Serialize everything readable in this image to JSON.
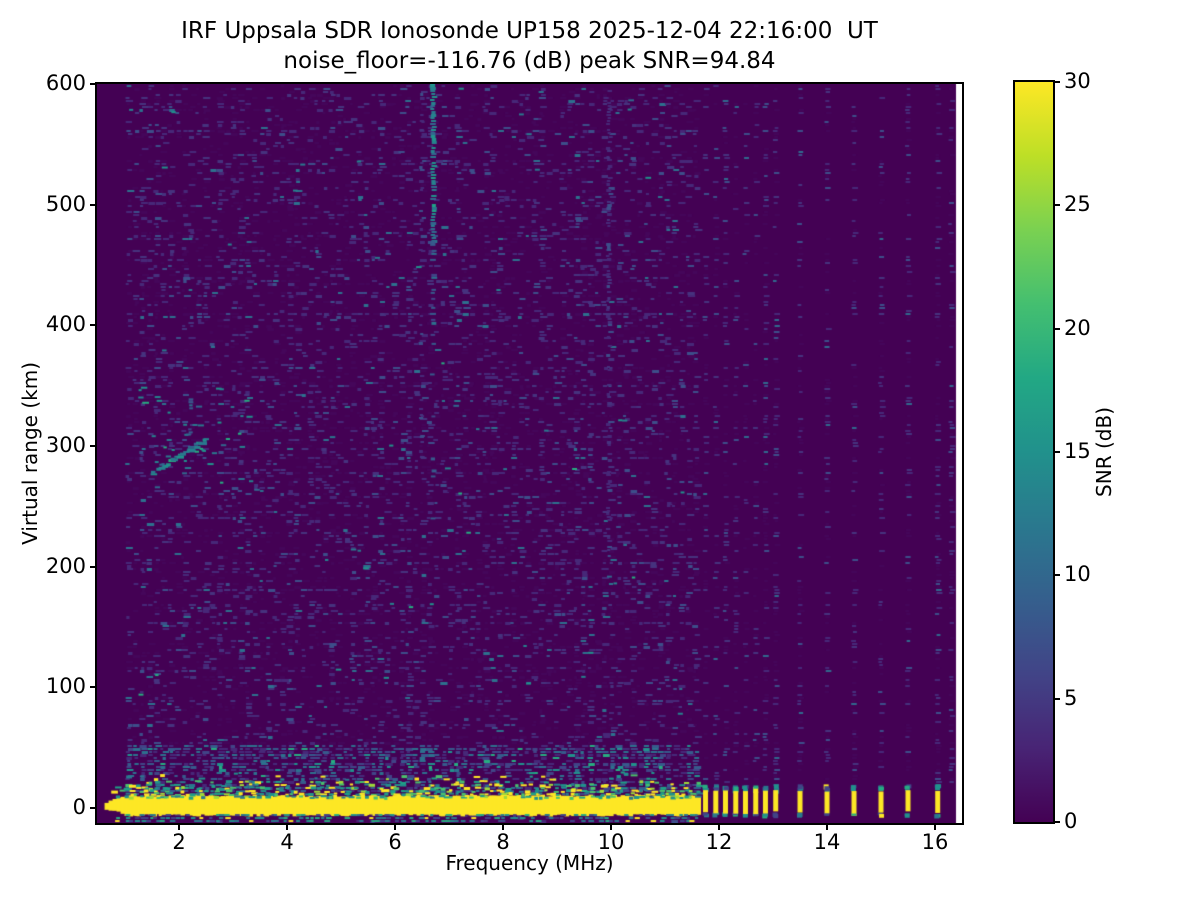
{
  "chart_data": {
    "type": "heatmap",
    "title": "IRF Uppsala SDR Ionosonde UP158 2025-12-04 22:16:00  UT",
    "subtitle": "noise_floor=-116.76 (dB) peak SNR=94.84",
    "xlabel": "Frequency (MHz)",
    "ylabel": "Virtual range (km)",
    "x_ticks": [
      2,
      4,
      6,
      8,
      10,
      12,
      14,
      16
    ],
    "y_ticks": [
      0,
      100,
      200,
      300,
      400,
      500,
      600
    ],
    "x_range_mhz": [
      0.48,
      16.5
    ],
    "y_range_km": [
      -12.4,
      600
    ],
    "data_max_mhz": 16.39,
    "colormap": "viridis",
    "background_color": "#440154",
    "colorbar": {
      "label": "SNR (dB)",
      "ticks": [
        0,
        5,
        10,
        15,
        20,
        25,
        30
      ],
      "range": [
        0,
        30
      ]
    },
    "viridis_stops": [
      "#440154",
      "#482475",
      "#414487",
      "#355f8d",
      "#2a788e",
      "#21918c",
      "#22a884",
      "#44bf70",
      "#7ad151",
      "#bddf26",
      "#fde725"
    ],
    "palettes": {
      "noise": {
        "colors": [
          "#45065a",
          "#472878",
          "#46327e",
          "#3d4e8a",
          "#2d708e"
        ],
        "weights": [
          0.42,
          0.3,
          0.16,
          0.09,
          0.03
        ]
      },
      "noiseHot": {
        "colors": [
          "#472878",
          "#414487",
          "#375a8c",
          "#2d708e",
          "#21918c",
          "#27ad81"
        ],
        "weights": [
          0.3,
          0.27,
          0.2,
          0.13,
          0.07,
          0.03
        ]
      },
      "fringe": {
        "colors": [
          "#fde725",
          "#9fda3a",
          "#4ac16d",
          "#1fa187",
          "#21918c",
          "#2a788e"
        ],
        "weights": [
          0.28,
          0.1,
          0.16,
          0.18,
          0.16,
          0.12
        ]
      },
      "below": {
        "colors": [
          "#21918c",
          "#27ad81",
          "#2a788e",
          "#414487",
          "#fde725"
        ],
        "weights": [
          0.28,
          0.16,
          0.26,
          0.2,
          0.1
        ]
      },
      "colNoise": {
        "colors": [
          "#45065a",
          "#472878",
          "#46327e",
          "#3d4e8a",
          "#31688e"
        ],
        "weights": [
          0.4,
          0.3,
          0.17,
          0.1,
          0.03
        ]
      },
      "stripeStrong": {
        "colors": [
          "#21918c",
          "#26828e",
          "#2a788e",
          "#31688e",
          "#1fa187"
        ],
        "weights": [
          0.3,
          0.25,
          0.2,
          0.15,
          0.1
        ]
      },
      "stripeMid": {
        "colors": [
          "#375a8c",
          "#414487",
          "#2d708e"
        ],
        "weights": [
          0.45,
          0.35,
          0.2
        ]
      },
      "stripeFaint": {
        "colors": [
          "#472878",
          "#46327e",
          "#3d4e8a"
        ],
        "weights": [
          0.5,
          0.3,
          0.2
        ]
      },
      "echo": {
        "colors": [
          "#21918c",
          "#26828e",
          "#2a788e",
          "#27ad81",
          "#31688e"
        ],
        "weights": [
          0.3,
          0.25,
          0.2,
          0.1,
          0.15
        ]
      }
    },
    "noise": {
      "start_mhz": 1.02,
      "end_mhz": 11.65,
      "base_density": 0.33,
      "palette": "noise",
      "elevated_km": [
        10,
        53
      ],
      "elevated_boost": 2.2,
      "elevated_palette": "noiseHot",
      "bright_speckles": 55
    },
    "ground_return_band": {
      "f_start": 0.62,
      "f_end": 11.62,
      "solid_top_km": 9.1,
      "solid_bottom_km": -5.0,
      "color": "#fde725"
    },
    "rf_dash_freqs_mhz": [
      11.75,
      11.94,
      12.12,
      12.31,
      12.49,
      12.68,
      12.86,
      13.05,
      13.5,
      14.0,
      14.5,
      15.0,
      15.5,
      16.05
    ],
    "dash_top_km": 14,
    "dash_bottom_km": -3.5,
    "noise_column_freqs_mhz": [
      11.75,
      11.94,
      12.12,
      12.31,
      12.49,
      12.68,
      12.86,
      13.05,
      13.5,
      14.0,
      14.5,
      15.0,
      15.5,
      16.05,
      16.3
    ],
    "right_noise": {
      "density": 0.3,
      "palette": "colNoise",
      "bottom_km": 16
    },
    "interference_stripes": [
      {
        "f_mhz": 6.7,
        "km_from": 470,
        "km_to": 600,
        "density": 0.95,
        "palette": "stripeStrong",
        "width": 4
      },
      {
        "f_mhz": 6.7,
        "km_from": 385,
        "km_to": 470,
        "density": 0.45,
        "palette": "stripeMid",
        "width": 4
      },
      {
        "f_mhz": 6.7,
        "km_from": 200,
        "km_to": 385,
        "density": 0.15,
        "palette": "stripeMid",
        "width": 4
      },
      {
        "f_mhz": 9.95,
        "km_from": 200,
        "km_to": 600,
        "density": 0.5,
        "palette": "stripeFaint",
        "width": 3
      },
      {
        "f_mhz": 6.48,
        "km_from": 280,
        "km_to": 600,
        "density": 0.25,
        "palette": "stripeFaint",
        "width": 3
      }
    ],
    "echo_trace": {
      "f_from": 1.46,
      "km_from": 279,
      "f_to": 2.48,
      "km_to": 307,
      "density": 0.85,
      "palette": "echo"
    },
    "echo_vertical": {
      "f_mhz": 2.2,
      "km_from": 305,
      "km_to": 342,
      "density": 0.5,
      "palette": "stripeMid",
      "width": 3
    },
    "echo_scatter": {
      "f_range": [
        1.2,
        3.3
      ],
      "km_range": [
        265,
        350
      ],
      "count": 40,
      "palette": "echo"
    }
  }
}
